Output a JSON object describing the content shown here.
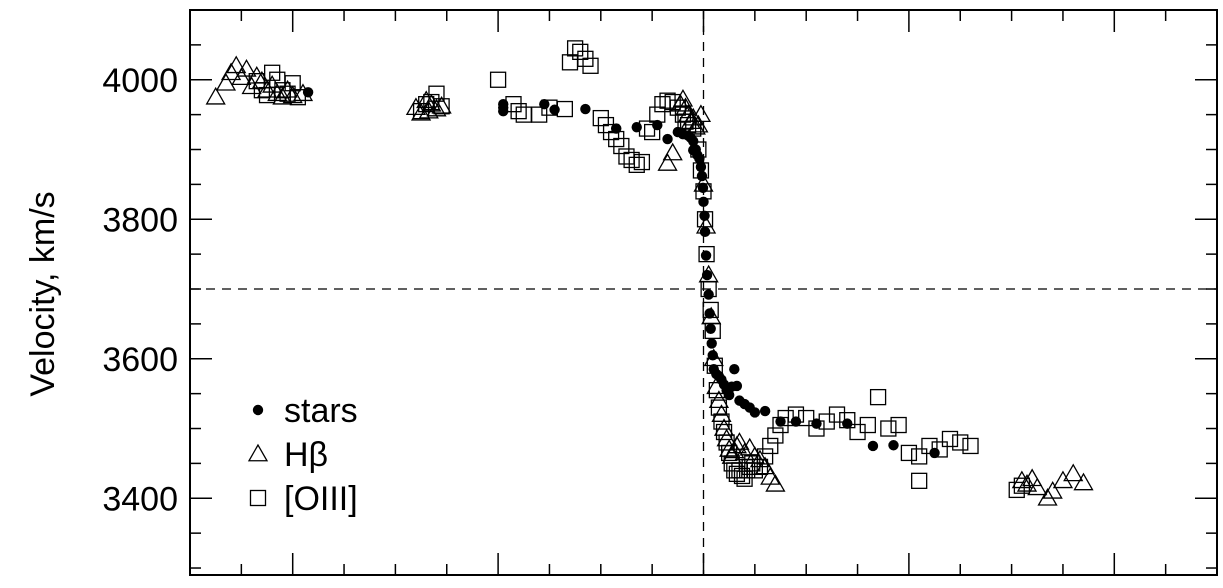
{
  "chart_data": {
    "type": "scatter",
    "ylabel": "Velocity, km/s",
    "ylim": [
      3290,
      4100
    ],
    "xlim": [
      -1,
      1
    ],
    "yticks": [
      3400,
      3600,
      3800,
      4000
    ],
    "yticks_minor_step": 50,
    "xticks_major": [
      -0.8,
      -0.4,
      0.0,
      0.4,
      0.8
    ],
    "xticks_minor_step": 0.1,
    "hline": 3700,
    "vline": 0.0,
    "grid": false,
    "legend_position": "bottom-left",
    "legend": [
      {
        "label": "stars",
        "marker": "filled-circle"
      },
      {
        "label": "Hβ",
        "marker": "open-triangle"
      },
      {
        "label": "[OIII]",
        "marker": "open-square"
      }
    ],
    "series": [
      {
        "name": "stars",
        "marker": "filled-circle",
        "points": [
          [
            -0.77,
            3982
          ],
          [
            -0.39,
            3965
          ],
          [
            -0.39,
            3960
          ],
          [
            -0.39,
            3955
          ],
          [
            -0.31,
            3965
          ],
          [
            -0.29,
            3957
          ],
          [
            -0.23,
            3958
          ],
          [
            -0.17,
            3930
          ],
          [
            -0.13,
            3932
          ],
          [
            -0.09,
            3935
          ],
          [
            -0.07,
            3915
          ],
          [
            -0.05,
            3925
          ],
          [
            -0.04,
            3922
          ],
          [
            -0.03,
            3920
          ],
          [
            -0.025,
            3917
          ],
          [
            -0.02,
            3912
          ],
          [
            -0.015,
            3900
          ],
          [
            -0.012,
            3892
          ],
          [
            -0.008,
            3887
          ],
          [
            -0.005,
            3875
          ],
          [
            -0.003,
            3862
          ],
          [
            -0.001,
            3845
          ],
          [
            0.0,
            3825
          ],
          [
            0.002,
            3805
          ],
          [
            0.003,
            3782
          ],
          [
            0.005,
            3748
          ],
          [
            0.007,
            3720
          ],
          [
            0.01,
            3692
          ],
          [
            0.012,
            3665
          ],
          [
            0.014,
            3643
          ],
          [
            0.016,
            3622
          ],
          [
            0.018,
            3605
          ],
          [
            0.02,
            3585
          ],
          [
            0.025,
            3578
          ],
          [
            0.03,
            3575
          ],
          [
            0.035,
            3570
          ],
          [
            0.04,
            3563
          ],
          [
            0.045,
            3555
          ],
          [
            0.05,
            3548
          ],
          [
            0.055,
            3560
          ],
          [
            0.06,
            3585
          ],
          [
            0.07,
            3540
          ],
          [
            0.08,
            3535
          ],
          [
            0.09,
            3530
          ],
          [
            0.1,
            3523
          ],
          [
            0.12,
            3525
          ],
          [
            0.15,
            3510
          ],
          [
            0.18,
            3510
          ],
          [
            0.22,
            3507
          ],
          [
            0.28,
            3507
          ],
          [
            0.33,
            3475
          ],
          [
            0.37,
            3476
          ],
          [
            0.45,
            3465
          ],
          [
            -0.016,
            3898
          ],
          [
            -0.02,
            3899
          ],
          [
            0.065,
            3561
          ]
        ]
      },
      {
        "name": "Hβ",
        "marker": "open-triangle",
        "points": [
          [
            -0.95,
            3975
          ],
          [
            -0.93,
            3995
          ],
          [
            -0.92,
            4010
          ],
          [
            -0.91,
            4020
          ],
          [
            -0.9,
            4003
          ],
          [
            -0.89,
            4015
          ],
          [
            -0.88,
            3990
          ],
          [
            -0.87,
            4005
          ],
          [
            -0.86,
            3998
          ],
          [
            -0.85,
            3985
          ],
          [
            -0.84,
            3992
          ],
          [
            -0.83,
            3980
          ],
          [
            -0.82,
            3975
          ],
          [
            -0.81,
            3985
          ],
          [
            -0.8,
            3977
          ],
          [
            -0.78,
            3980
          ],
          [
            -0.56,
            3960
          ],
          [
            -0.55,
            3952
          ],
          [
            -0.54,
            3970
          ],
          [
            -0.535,
            3955
          ],
          [
            -0.53,
            3965
          ],
          [
            -0.52,
            3958
          ],
          [
            -0.51,
            3962
          ],
          [
            -0.07,
            3880
          ],
          [
            -0.06,
            3895
          ],
          [
            -0.045,
            3965
          ],
          [
            -0.04,
            3972
          ],
          [
            -0.035,
            3960
          ],
          [
            -0.03,
            3950
          ],
          [
            -0.025,
            3940
          ],
          [
            -0.02,
            3945
          ],
          [
            -0.015,
            3932
          ],
          [
            -0.01,
            3935
          ],
          [
            -0.005,
            3950
          ],
          [
            0.0,
            3850
          ],
          [
            0.005,
            3790
          ],
          [
            0.01,
            3720
          ],
          [
            0.015,
            3660
          ],
          [
            0.02,
            3600
          ],
          [
            0.025,
            3560
          ],
          [
            0.03,
            3540
          ],
          [
            0.035,
            3520
          ],
          [
            0.04,
            3500
          ],
          [
            0.045,
            3485
          ],
          [
            0.05,
            3470
          ],
          [
            0.055,
            3460
          ],
          [
            0.06,
            3468
          ],
          [
            0.065,
            3475
          ],
          [
            0.07,
            3480
          ],
          [
            0.08,
            3465
          ],
          [
            0.09,
            3472
          ],
          [
            0.1,
            3460
          ],
          [
            0.11,
            3455
          ],
          [
            0.12,
            3445
          ],
          [
            0.13,
            3430
          ],
          [
            0.14,
            3420
          ],
          [
            0.62,
            3425
          ],
          [
            0.63,
            3420
          ],
          [
            0.64,
            3428
          ],
          [
            0.65,
            3415
          ],
          [
            0.67,
            3400
          ],
          [
            0.68,
            3410
          ],
          [
            0.7,
            3425
          ],
          [
            0.72,
            3435
          ],
          [
            0.74,
            3422
          ]
        ]
      },
      {
        "name": "[OIII]",
        "marker": "open-square",
        "points": [
          [
            -0.87,
            3998
          ],
          [
            -0.86,
            3985
          ],
          [
            -0.85,
            3978
          ],
          [
            -0.84,
            4010
          ],
          [
            -0.83,
            4000
          ],
          [
            -0.82,
            3985
          ],
          [
            -0.81,
            3980
          ],
          [
            -0.8,
            3995
          ],
          [
            -0.79,
            3975
          ],
          [
            -0.55,
            3955
          ],
          [
            -0.54,
            3965
          ],
          [
            -0.53,
            3968
          ],
          [
            -0.52,
            3980
          ],
          [
            -0.51,
            3962
          ],
          [
            -0.4,
            4000
          ],
          [
            -0.37,
            3965
          ],
          [
            -0.36,
            3955
          ],
          [
            -0.35,
            3950
          ],
          [
            -0.32,
            3950
          ],
          [
            -0.3,
            3960
          ],
          [
            -0.27,
            3958
          ],
          [
            -0.26,
            4025
          ],
          [
            -0.25,
            4045
          ],
          [
            -0.24,
            4040
          ],
          [
            -0.23,
            4030
          ],
          [
            -0.22,
            4020
          ],
          [
            -0.2,
            3945
          ],
          [
            -0.19,
            3935
          ],
          [
            -0.18,
            3925
          ],
          [
            -0.17,
            3915
          ],
          [
            -0.16,
            3905
          ],
          [
            -0.15,
            3890
          ],
          [
            -0.14,
            3885
          ],
          [
            -0.13,
            3878
          ],
          [
            -0.12,
            3882
          ],
          [
            -0.11,
            3930
          ],
          [
            -0.1,
            3925
          ],
          [
            -0.09,
            3950
          ],
          [
            -0.08,
            3965
          ],
          [
            -0.07,
            3970
          ],
          [
            -0.06,
            3968
          ],
          [
            -0.05,
            3960
          ],
          [
            -0.04,
            3950
          ],
          [
            -0.035,
            3940
          ],
          [
            -0.03,
            3935
          ],
          [
            -0.02,
            3930
          ],
          [
            -0.01,
            3900
          ],
          [
            -0.005,
            3870
          ],
          [
            0.0,
            3840
          ],
          [
            0.003,
            3800
          ],
          [
            0.006,
            3750
          ],
          [
            0.01,
            3700
          ],
          [
            0.014,
            3670
          ],
          [
            0.018,
            3640
          ],
          [
            0.022,
            3590
          ],
          [
            0.026,
            3555
          ],
          [
            0.03,
            3530
          ],
          [
            0.035,
            3510
          ],
          [
            0.04,
            3495
          ],
          [
            0.045,
            3480
          ],
          [
            0.05,
            3465
          ],
          [
            0.055,
            3450
          ],
          [
            0.06,
            3440
          ],
          [
            0.065,
            3435
          ],
          [
            0.07,
            3440
          ],
          [
            0.075,
            3432
          ],
          [
            0.08,
            3428
          ],
          [
            0.085,
            3440
          ],
          [
            0.09,
            3445
          ],
          [
            0.095,
            3450
          ],
          [
            0.1,
            3440
          ],
          [
            0.11,
            3445
          ],
          [
            0.12,
            3460
          ],
          [
            0.13,
            3475
          ],
          [
            0.14,
            3490
          ],
          [
            0.15,
            3505
          ],
          [
            0.16,
            3515
          ],
          [
            0.18,
            3520
          ],
          [
            0.2,
            3515
          ],
          [
            0.22,
            3500
          ],
          [
            0.24,
            3510
          ],
          [
            0.26,
            3520
          ],
          [
            0.28,
            3512
          ],
          [
            0.3,
            3495
          ],
          [
            0.32,
            3505
          ],
          [
            0.34,
            3545
          ],
          [
            0.36,
            3500
          ],
          [
            0.38,
            3505
          ],
          [
            0.4,
            3465
          ],
          [
            0.42,
            3460
          ],
          [
            0.44,
            3475
          ],
          [
            0.46,
            3470
          ],
          [
            0.48,
            3485
          ],
          [
            0.5,
            3480
          ],
          [
            0.52,
            3475
          ],
          [
            0.42,
            3425
          ],
          [
            0.61,
            3412
          ],
          [
            0.62,
            3418
          ]
        ]
      }
    ]
  }
}
